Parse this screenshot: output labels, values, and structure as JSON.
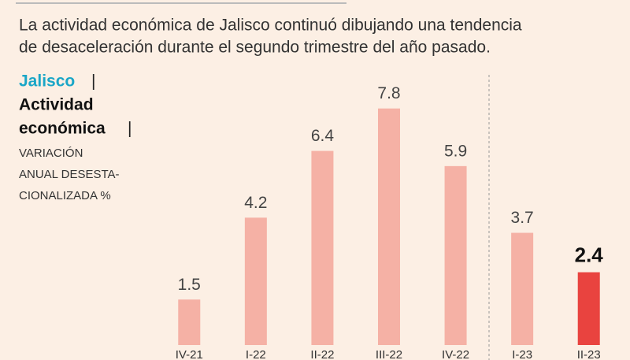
{
  "chart_data": {
    "type": "bar",
    "title_lines": [
      "La actividad económica de Jalisco continuó dibujando una tendencia",
      "de desaceleración durante el segundo trimestre del año pasado."
    ],
    "label_region": "Jalisco",
    "label_metric_lines": [
      "Actividad",
      "económica"
    ],
    "subtitle_lines": [
      "VARIACIÓN",
      "ANUAL DESESTA-",
      "CIONALIZADA %"
    ],
    "categories": [
      "IV-21",
      "I-22",
      "II-22",
      "III-22",
      "IV-22",
      "I-23",
      "II-23"
    ],
    "values": [
      1.5,
      4.2,
      6.4,
      7.8,
      5.9,
      3.7,
      2.4
    ],
    "colors": [
      "#f5b1a5",
      "#f5b1a5",
      "#f5b1a5",
      "#f5b1a5",
      "#f5b1a5",
      "#f5b1a5",
      "#e9433f"
    ],
    "ylim": [
      0,
      8
    ]
  }
}
